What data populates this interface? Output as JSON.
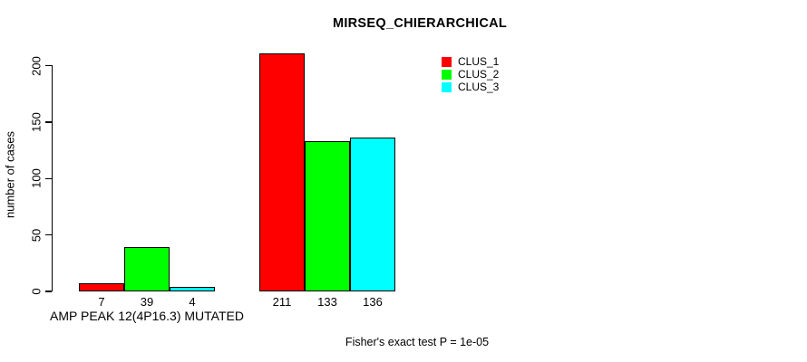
{
  "chart_data": {
    "type": "bar",
    "title": "MIRSEQ_CHIERARCHICAL",
    "xlabel": "",
    "ylabel": "number of cases",
    "ylim": [
      0,
      211
    ],
    "yticks": [
      0,
      50,
      100,
      150,
      200
    ],
    "grid": false,
    "categories": [
      "AMP PEAK 12(4P16.3) MUTATED",
      ""
    ],
    "series": [
      {
        "name": "CLUS_1",
        "color": "#ff0000",
        "values": [
          7,
          211
        ]
      },
      {
        "name": "CLUS_2",
        "color": "#00ff00",
        "values": [
          39,
          133
        ]
      },
      {
        "name": "CLUS_3",
        "color": "#00ffff",
        "values": [
          4,
          136
        ]
      }
    ],
    "bar_value_labels": [
      [
        "7",
        "39",
        "4"
      ],
      [
        "211",
        "133",
        "136"
      ]
    ],
    "legend_position": "top-right",
    "annotation": "Fisher's exact test P = 1e-05"
  },
  "colors": {
    "clus_1": "#ff0000",
    "clus_2": "#00ff00",
    "clus_3": "#00ffff",
    "axis": "#000000",
    "background": "#ffffff"
  }
}
